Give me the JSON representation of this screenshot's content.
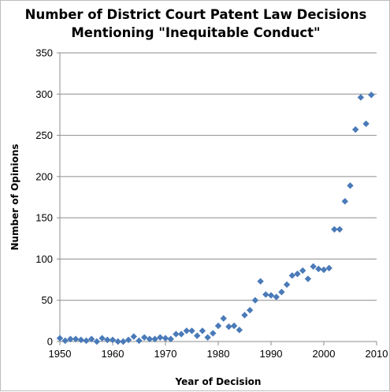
{
  "chart_data": {
    "type": "scatter",
    "title_lines": [
      "Number of District Court Patent Law Decisions",
      "Mentioning \"Inequitable Conduct\""
    ],
    "xlabel": "Year of Decision",
    "ylabel": "Number of Opinions",
    "xlim": [
      1950,
      2010
    ],
    "ylim": [
      0,
      350
    ],
    "x_ticks": [
      1950,
      1960,
      1970,
      1980,
      1990,
      2000,
      2010
    ],
    "y_ticks": [
      0,
      50,
      100,
      150,
      200,
      250,
      300,
      350
    ],
    "grid": "horizontal",
    "legend": "none",
    "marker": "diamond",
    "marker_color": "#4a7ab8",
    "points": [
      {
        "x": 1950,
        "y": 4
      },
      {
        "x": 1951,
        "y": 1
      },
      {
        "x": 1952,
        "y": 3
      },
      {
        "x": 1953,
        "y": 3
      },
      {
        "x": 1954,
        "y": 2
      },
      {
        "x": 1955,
        "y": 1
      },
      {
        "x": 1956,
        "y": 3
      },
      {
        "x": 1957,
        "y": 0
      },
      {
        "x": 1958,
        "y": 4
      },
      {
        "x": 1959,
        "y": 2
      },
      {
        "x": 1960,
        "y": 2
      },
      {
        "x": 1961,
        "y": 0
      },
      {
        "x": 1962,
        "y": 0
      },
      {
        "x": 1963,
        "y": 2
      },
      {
        "x": 1964,
        "y": 6
      },
      {
        "x": 1965,
        "y": 1
      },
      {
        "x": 1966,
        "y": 5
      },
      {
        "x": 1967,
        "y": 3
      },
      {
        "x": 1968,
        "y": 3
      },
      {
        "x": 1969,
        "y": 5
      },
      {
        "x": 1970,
        "y": 4
      },
      {
        "x": 1971,
        "y": 3
      },
      {
        "x": 1972,
        "y": 9
      },
      {
        "x": 1973,
        "y": 9
      },
      {
        "x": 1974,
        "y": 13
      },
      {
        "x": 1975,
        "y": 13
      },
      {
        "x": 1976,
        "y": 7
      },
      {
        "x": 1977,
        "y": 13
      },
      {
        "x": 1978,
        "y": 5
      },
      {
        "x": 1979,
        "y": 10
      },
      {
        "x": 1980,
        "y": 19
      },
      {
        "x": 1981,
        "y": 28
      },
      {
        "x": 1982,
        "y": 18
      },
      {
        "x": 1983,
        "y": 19
      },
      {
        "x": 1984,
        "y": 14
      },
      {
        "x": 1985,
        "y": 32
      },
      {
        "x": 1986,
        "y": 38
      },
      {
        "x": 1987,
        "y": 50
      },
      {
        "x": 1988,
        "y": 73
      },
      {
        "x": 1989,
        "y": 57
      },
      {
        "x": 1990,
        "y": 56
      },
      {
        "x": 1991,
        "y": 54
      },
      {
        "x": 1992,
        "y": 60
      },
      {
        "x": 1993,
        "y": 69
      },
      {
        "x": 1994,
        "y": 80
      },
      {
        "x": 1995,
        "y": 82
      },
      {
        "x": 1996,
        "y": 86
      },
      {
        "x": 1997,
        "y": 76
      },
      {
        "x": 1998,
        "y": 91
      },
      {
        "x": 1999,
        "y": 88
      },
      {
        "x": 2000,
        "y": 87
      },
      {
        "x": 2001,
        "y": 89
      },
      {
        "x": 2002,
        "y": 136
      },
      {
        "x": 2003,
        "y": 136
      },
      {
        "x": 2004,
        "y": 170
      },
      {
        "x": 2005,
        "y": 189
      },
      {
        "x": 2006,
        "y": 257
      },
      {
        "x": 2007,
        "y": 296
      },
      {
        "x": 2008,
        "y": 264
      },
      {
        "x": 2009,
        "y": 299
      }
    ]
  }
}
